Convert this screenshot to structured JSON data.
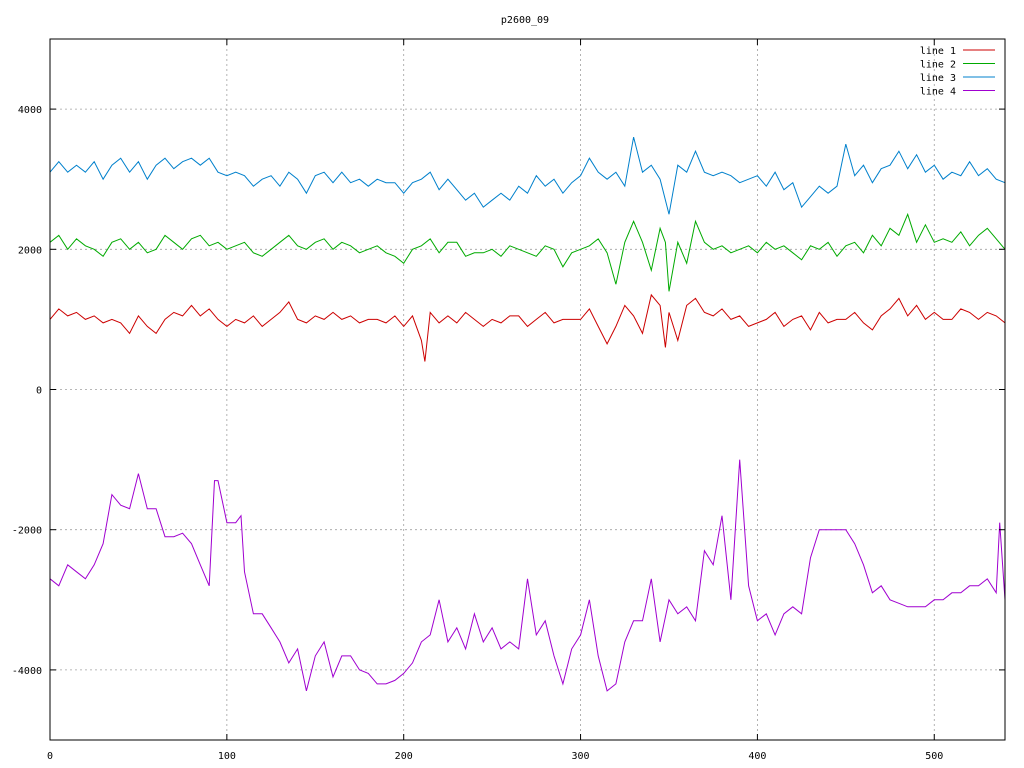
{
  "chart_data": {
    "type": "line",
    "title": "p2600_09",
    "xlabel": "",
    "ylabel": "",
    "xlim": [
      0,
      540
    ],
    "ylim": [
      -5000,
      5000
    ],
    "xticks": [
      0,
      100,
      200,
      300,
      400,
      500
    ],
    "yticks": [
      -4000,
      -2000,
      0,
      2000,
      4000
    ],
    "grid": true,
    "legend_position": "top-right",
    "series": [
      {
        "name": "line 1",
        "color": "#cc0000",
        "x": [
          0,
          5,
          10,
          15,
          20,
          25,
          30,
          35,
          40,
          45,
          50,
          55,
          60,
          65,
          70,
          75,
          80,
          85,
          90,
          95,
          100,
          105,
          110,
          115,
          120,
          125,
          130,
          135,
          140,
          145,
          150,
          155,
          160,
          165,
          170,
          175,
          180,
          185,
          190,
          195,
          200,
          205,
          210,
          212,
          215,
          220,
          225,
          230,
          235,
          240,
          245,
          250,
          255,
          260,
          265,
          270,
          275,
          280,
          285,
          290,
          295,
          300,
          305,
          310,
          315,
          320,
          325,
          330,
          335,
          340,
          345,
          348,
          350,
          355,
          360,
          365,
          370,
          375,
          380,
          385,
          390,
          395,
          400,
          405,
          410,
          415,
          420,
          425,
          430,
          435,
          440,
          445,
          450,
          455,
          460,
          465,
          470,
          475,
          480,
          485,
          490,
          495,
          500,
          505,
          510,
          515,
          520,
          525,
          530,
          535,
          540
        ],
        "y": [
          1000,
          1150,
          1050,
          1100,
          1000,
          1050,
          950,
          1000,
          950,
          800,
          1050,
          900,
          800,
          1000,
          1100,
          1050,
          1200,
          1050,
          1150,
          1000,
          900,
          1000,
          950,
          1050,
          900,
          1000,
          1100,
          1250,
          1000,
          950,
          1050,
          1000,
          1100,
          1000,
          1050,
          950,
          1000,
          1000,
          950,
          1050,
          900,
          1050,
          700,
          400,
          1100,
          950,
          1050,
          950,
          1100,
          1000,
          900,
          1000,
          950,
          1050,
          1050,
          900,
          1000,
          1100,
          950,
          1000,
          1000,
          1000,
          1150,
          900,
          650,
          900,
          1200,
          1050,
          800,
          1350,
          1200,
          600,
          1100,
          700,
          1200,
          1300,
          1100,
          1050,
          1150,
          1000,
          1050,
          900,
          950,
          1000,
          1100,
          900,
          1000,
          1050,
          850,
          1100,
          950,
          1000,
          1000,
          1100,
          950,
          850,
          1050,
          1150,
          1300,
          1050,
          1200,
          1000,
          1100,
          1000,
          1000,
          1150,
          1100,
          1000,
          1100,
          1050,
          950
        ]
      },
      {
        "name": "line 2",
        "color": "#00aa00",
        "x": [
          0,
          5,
          10,
          15,
          20,
          25,
          30,
          35,
          40,
          45,
          50,
          55,
          60,
          65,
          70,
          75,
          80,
          85,
          90,
          95,
          100,
          105,
          110,
          115,
          120,
          125,
          130,
          135,
          140,
          145,
          150,
          155,
          160,
          165,
          170,
          175,
          180,
          185,
          190,
          195,
          200,
          205,
          210,
          215,
          220,
          225,
          230,
          235,
          240,
          245,
          250,
          255,
          260,
          265,
          270,
          275,
          280,
          285,
          290,
          295,
          300,
          305,
          310,
          315,
          320,
          325,
          330,
          335,
          340,
          345,
          348,
          350,
          355,
          360,
          365,
          370,
          375,
          380,
          385,
          390,
          395,
          400,
          405,
          410,
          415,
          420,
          425,
          430,
          435,
          440,
          445,
          450,
          455,
          460,
          465,
          470,
          475,
          480,
          485,
          490,
          495,
          500,
          505,
          510,
          515,
          520,
          525,
          530,
          535,
          540
        ],
        "y": [
          2100,
          2200,
          2000,
          2150,
          2050,
          2000,
          1900,
          2100,
          2150,
          2000,
          2100,
          1950,
          2000,
          2200,
          2100,
          2000,
          2150,
          2200,
          2050,
          2100,
          2000,
          2050,
          2100,
          1950,
          1900,
          2000,
          2100,
          2200,
          2050,
          2000,
          2100,
          2150,
          2000,
          2100,
          2050,
          1950,
          2000,
          2050,
          1950,
          1900,
          1800,
          2000,
          2050,
          2150,
          1950,
          2100,
          2100,
          1900,
          1950,
          1950,
          2000,
          1900,
          2050,
          2000,
          1950,
          1900,
          2050,
          2000,
          1750,
          1950,
          2000,
          2050,
          2150,
          1950,
          1500,
          2100,
          2400,
          2100,
          1700,
          2300,
          2100,
          1400,
          2100,
          1800,
          2400,
          2100,
          2000,
          2050,
          1950,
          2000,
          2050,
          1950,
          2100,
          2000,
          2050,
          1950,
          1850,
          2050,
          2000,
          2100,
          1900,
          2050,
          2100,
          1950,
          2200,
          2050,
          2300,
          2200,
          2500,
          2100,
          2350,
          2100,
          2150,
          2100,
          2250,
          2050,
          2200,
          2300,
          2150,
          2000
        ]
      },
      {
        "name": "line 3",
        "color": "#0080cc",
        "x": [
          0,
          5,
          10,
          15,
          20,
          25,
          30,
          35,
          40,
          45,
          50,
          55,
          60,
          65,
          70,
          75,
          80,
          85,
          90,
          95,
          100,
          105,
          110,
          115,
          120,
          125,
          130,
          135,
          140,
          145,
          150,
          155,
          160,
          165,
          170,
          175,
          180,
          185,
          190,
          195,
          200,
          205,
          210,
          215,
          220,
          225,
          230,
          235,
          240,
          245,
          250,
          255,
          260,
          265,
          270,
          275,
          280,
          285,
          290,
          295,
          300,
          305,
          310,
          315,
          320,
          325,
          330,
          335,
          340,
          345,
          350,
          355,
          360,
          365,
          370,
          375,
          380,
          385,
          390,
          395,
          400,
          405,
          410,
          415,
          420,
          425,
          430,
          435,
          440,
          445,
          450,
          455,
          460,
          465,
          470,
          475,
          480,
          485,
          490,
          495,
          500,
          505,
          510,
          515,
          520,
          525,
          530,
          535,
          540
        ],
        "y": [
          3100,
          3250,
          3100,
          3200,
          3100,
          3250,
          3000,
          3200,
          3300,
          3100,
          3250,
          3000,
          3200,
          3300,
          3150,
          3250,
          3300,
          3200,
          3300,
          3100,
          3050,
          3100,
          3050,
          2900,
          3000,
          3050,
          2900,
          3100,
          3000,
          2800,
          3050,
          3100,
          2950,
          3100,
          2950,
          3000,
          2900,
          3000,
          2950,
          2950,
          2800,
          2950,
          3000,
          3100,
          2850,
          3000,
          2850,
          2700,
          2800,
          2600,
          2700,
          2800,
          2700,
          2900,
          2800,
          3050,
          2900,
          3000,
          2800,
          2950,
          3050,
          3300,
          3100,
          3000,
          3100,
          2900,
          3600,
          3100,
          3200,
          3000,
          2500,
          3200,
          3100,
          3400,
          3100,
          3050,
          3100,
          3050,
          2950,
          3000,
          3050,
          2900,
          3100,
          2850,
          2950,
          2600,
          2750,
          2900,
          2800,
          2900,
          3500,
          3050,
          3200,
          2950,
          3150,
          3200,
          3400,
          3150,
          3350,
          3100,
          3200,
          3000,
          3100,
          3050,
          3250,
          3050,
          3150,
          3000,
          2950
        ]
      },
      {
        "name": "line 4",
        "color": "#a000d0",
        "x": [
          0,
          5,
          10,
          15,
          20,
          25,
          30,
          35,
          40,
          45,
          50,
          55,
          60,
          65,
          70,
          75,
          80,
          85,
          90,
          93,
          95,
          100,
          105,
          108,
          110,
          115,
          120,
          125,
          130,
          135,
          140,
          145,
          150,
          155,
          160,
          165,
          170,
          175,
          180,
          185,
          190,
          195,
          200,
          205,
          210,
          215,
          220,
          225,
          230,
          235,
          240,
          245,
          250,
          255,
          260,
          265,
          270,
          275,
          280,
          285,
          290,
          295,
          300,
          305,
          310,
          315,
          320,
          325,
          330,
          335,
          340,
          345,
          350,
          355,
          360,
          365,
          370,
          375,
          380,
          385,
          390,
          395,
          400,
          405,
          410,
          415,
          420,
          425,
          430,
          435,
          440,
          445,
          450,
          455,
          460,
          465,
          470,
          475,
          480,
          485,
          490,
          495,
          500,
          505,
          510,
          515,
          520,
          525,
          530,
          535,
          537,
          540
        ],
        "y": [
          -2700,
          -2800,
          -2500,
          -2600,
          -2700,
          -2500,
          -2200,
          -1500,
          -1650,
          -1700,
          -1200,
          -1700,
          -1700,
          -2100,
          -2100,
          -2050,
          -2200,
          -2500,
          -2800,
          -1300,
          -1300,
          -1900,
          -1900,
          -1800,
          -2600,
          -3200,
          -3200,
          -3400,
          -3600,
          -3900,
          -3700,
          -4300,
          -3800,
          -3600,
          -4100,
          -3800,
          -3800,
          -4000,
          -4050,
          -4200,
          -4200,
          -4150,
          -4050,
          -3900,
          -3600,
          -3500,
          -3000,
          -3600,
          -3400,
          -3700,
          -3200,
          -3600,
          -3400,
          -3700,
          -3600,
          -3700,
          -2700,
          -3500,
          -3300,
          -3800,
          -4200,
          -3700,
          -3500,
          -3000,
          -3800,
          -4300,
          -4200,
          -3600,
          -3300,
          -3300,
          -2700,
          -3600,
          -3000,
          -3200,
          -3100,
          -3300,
          -2300,
          -2500,
          -1800,
          -3000,
          -1000,
          -2800,
          -3300,
          -3200,
          -3500,
          -3200,
          -3100,
          -3200,
          -2400,
          -2000,
          -2000,
          -2000,
          -2000,
          -2200,
          -2500,
          -2900,
          -2800,
          -3000,
          -3050,
          -3100,
          -3100,
          -3100,
          -3000,
          -3000,
          -2900,
          -2900,
          -2800,
          -2800,
          -2700,
          -2900,
          -1900,
          -3000
        ]
      }
    ]
  }
}
